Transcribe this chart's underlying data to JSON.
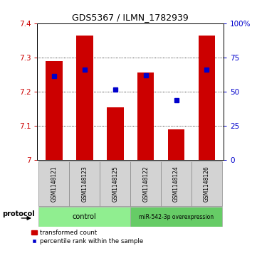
{
  "title": "GDS5367 / ILMN_1782939",
  "samples": [
    "GSM1148121",
    "GSM1148123",
    "GSM1148125",
    "GSM1148122",
    "GSM1148124",
    "GSM1148126"
  ],
  "bar_values": [
    7.29,
    7.365,
    7.155,
    7.255,
    7.09,
    7.365
  ],
  "bar_bottom": 7.0,
  "percentile_values": [
    7.245,
    7.265,
    7.205,
    7.248,
    7.175,
    7.265
  ],
  "ylim_left": [
    7.0,
    7.4
  ],
  "ylim_right": [
    0,
    100
  ],
  "yticks_left": [
    7.0,
    7.1,
    7.2,
    7.3,
    7.4
  ],
  "ytick_labels_left": [
    "7",
    "7.1",
    "7.2",
    "7.3",
    "7.4"
  ],
  "yticks_right": [
    0,
    25,
    50,
    75,
    100
  ],
  "ytick_labels_right": [
    "0",
    "25",
    "50",
    "75",
    "100%"
  ],
  "bar_color": "#cc0000",
  "percentile_color": "#0000cc",
  "control_color": "#90ee90",
  "overexp_color": "#66cc66",
  "control_label": "control",
  "overexp_label": "miR-542-3p overexpression",
  "protocol_label": "protocol",
  "legend_bar_label": "transformed count",
  "legend_pct_label": "percentile rank within the sample",
  "bar_width": 0.55,
  "n_control": 3,
  "n_overexp": 3
}
